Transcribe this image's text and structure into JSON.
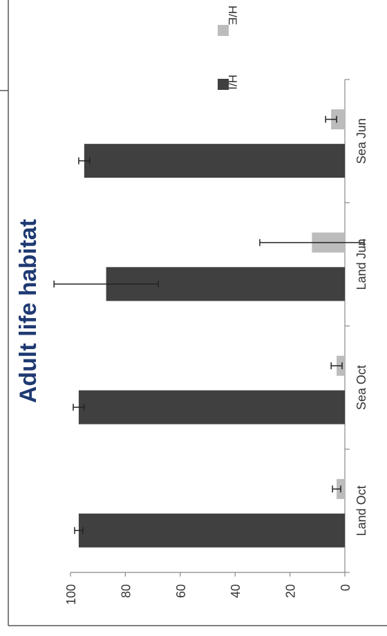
{
  "chart_data": {
    "type": "bar",
    "orientation": "rotated 90° clockwise (value axis along bottom, categories along right side)",
    "title": "Adult life habitat",
    "xlabel": "",
    "ylabel": "",
    "ylim": [
      0,
      100
    ],
    "yticks": [
      0,
      20,
      40,
      60,
      80,
      100
    ],
    "categories": [
      "Land Oct",
      "Sea Oct",
      "Land Jun",
      "Sea Jun"
    ],
    "series": [
      {
        "name": "H/I",
        "color": "#404040",
        "values": [
          97,
          97,
          87,
          95
        ],
        "errors": [
          1.5,
          2,
          19,
          2
        ]
      },
      {
        "name": "H/E",
        "color": "#bcbcbc",
        "values": [
          3,
          3,
          12,
          5
        ],
        "errors": [
          1.5,
          2,
          19,
          2
        ]
      }
    ],
    "legend": {
      "position": "top-right"
    },
    "grid": false
  }
}
